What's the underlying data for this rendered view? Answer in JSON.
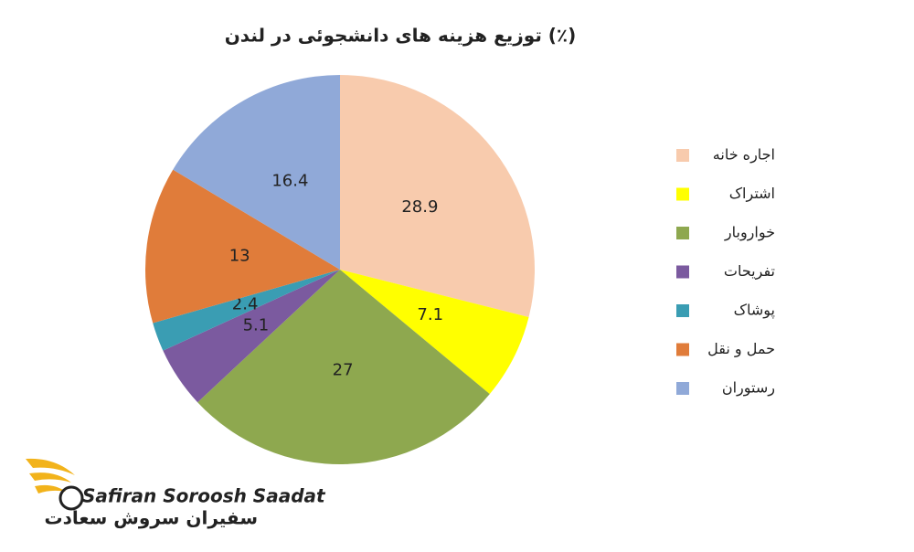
{
  "chart_data": {
    "type": "pie",
    "title": "توزیع هزینه های دانشجوئی در لندن (٪)",
    "categories": [
      "اجاره خانه",
      "اشتراک",
      "خواروبار",
      "تفریحات",
      "پوشاک",
      "حمل و نقل",
      "رستوران"
    ],
    "values": [
      28.9,
      7.1,
      27,
      5.1,
      2.4,
      13,
      16.4
    ],
    "colors": [
      "#f8cbad",
      "#ffff00",
      "#8ea84f",
      "#7b5a9f",
      "#3a9db3",
      "#e07c3a",
      "#90a9d8"
    ],
    "legend": "right"
  },
  "logo": {
    "name_latin": "Safiran Soroosh Saadat",
    "name_persian": "سفیران سروش سعادت"
  }
}
